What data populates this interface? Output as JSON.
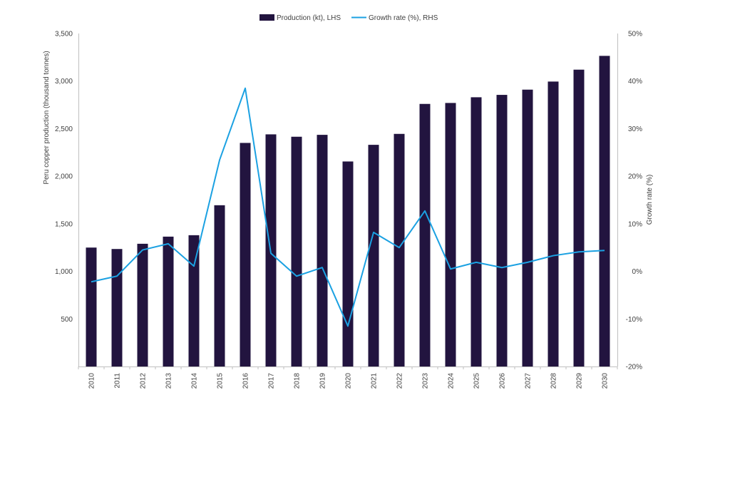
{
  "colors": {
    "bar": "#22143f",
    "line": "#1ba1e2",
    "axis": "#bfbfbf"
  },
  "legend": {
    "production": "Production (kt), LHS",
    "growth": "Growth rate (%), RHS"
  },
  "chart_data": {
    "type": "bar",
    "title": "",
    "ylabel": "Peru copper production (thousand tonnes)",
    "y2label": "Growth rate (%)",
    "ylim": [
      0,
      3500
    ],
    "y2lim": [
      -20,
      50
    ],
    "yticks": [
      {
        "value": 500,
        "label": "500"
      },
      {
        "value": 1000,
        "label": "1,000"
      },
      {
        "value": 1500,
        "label": "1,500"
      },
      {
        "value": 2000,
        "label": "2,000"
      },
      {
        "value": 2500,
        "label": "2,500"
      },
      {
        "value": 3000,
        "label": "3,000"
      },
      {
        "value": 3500,
        "label": "3,500"
      }
    ],
    "y2ticks": [
      {
        "value": -20,
        "label": "-20%"
      },
      {
        "value": -10,
        "label": "-10%"
      },
      {
        "value": 0,
        "label": "0%"
      },
      {
        "value": 10,
        "label": "10%"
      },
      {
        "value": 20,
        "label": "20%"
      },
      {
        "value": 30,
        "label": "30%"
      },
      {
        "value": 40,
        "label": "40%"
      },
      {
        "value": 50,
        "label": "50%"
      }
    ],
    "categories": [
      "2010",
      "2011",
      "2012",
      "2013",
      "2014",
      "2015",
      "2016",
      "2017",
      "2018",
      "2019",
      "2020",
      "2021",
      "2022",
      "2023",
      "2024",
      "2025",
      "2026",
      "2027",
      "2028",
      "2029",
      "2030"
    ],
    "series": [
      {
        "name": "Production (kt), LHS",
        "type": "bar",
        "axis": "left",
        "values": [
          1250,
          1235,
          1290,
          1365,
          1380,
          1695,
          2350,
          2440,
          2415,
          2435,
          2155,
          2330,
          2445,
          2760,
          2770,
          2830,
          2855,
          2910,
          2995,
          3120,
          3265
        ]
      },
      {
        "name": "Growth rate (%), RHS",
        "type": "line",
        "axis": "right",
        "values": [
          -2.2,
          -1.0,
          4.5,
          5.8,
          1.1,
          23.4,
          38.5,
          3.8,
          -1.0,
          0.8,
          -11.5,
          8.2,
          5.0,
          12.7,
          0.5,
          1.9,
          0.8,
          1.9,
          3.3,
          4.1,
          4.4
        ]
      }
    ],
    "grid": false,
    "legend_position": "top-center"
  }
}
